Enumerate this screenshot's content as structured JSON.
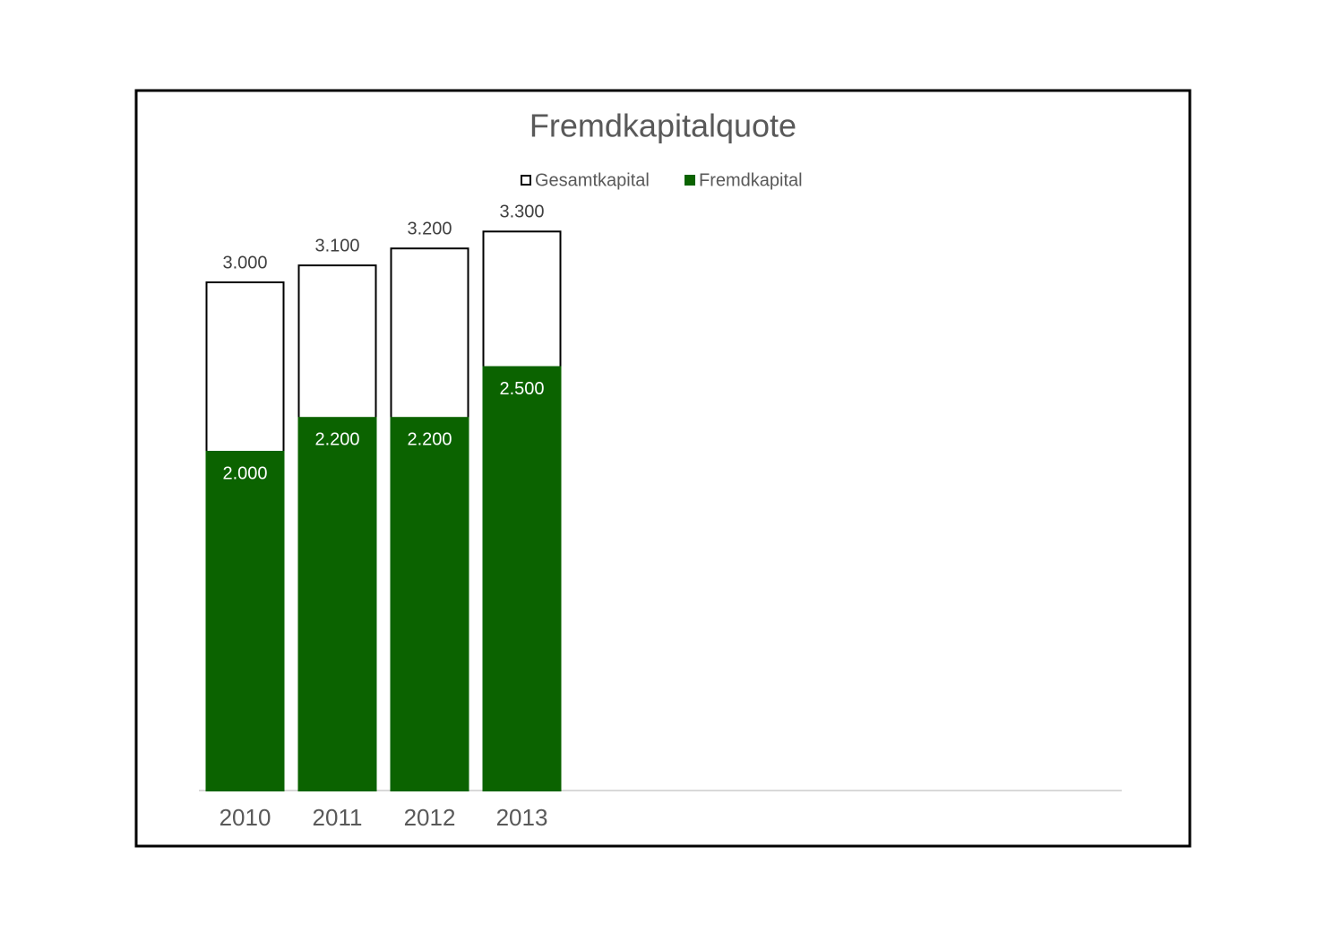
{
  "chart_data": {
    "type": "bar",
    "title": "Fremdkapitalquote",
    "categories": [
      "2010",
      "2011",
      "2012",
      "2013"
    ],
    "series": [
      {
        "name": "Gesamtkapital",
        "color": "#ffffff",
        "values": [
          3000,
          3100,
          3200,
          3300
        ],
        "value_labels": [
          "3.000",
          "3.100",
          "3.200",
          "3.300"
        ]
      },
      {
        "name": "Fremdkapital",
        "color": "#0b6300",
        "values": [
          2000,
          2200,
          2200,
          2500
        ],
        "value_labels": [
          "2.000",
          "2.200",
          "2.200",
          "2.500"
        ]
      }
    ],
    "ylim": [
      0,
      3500
    ],
    "legend": "top",
    "overlap": true
  }
}
